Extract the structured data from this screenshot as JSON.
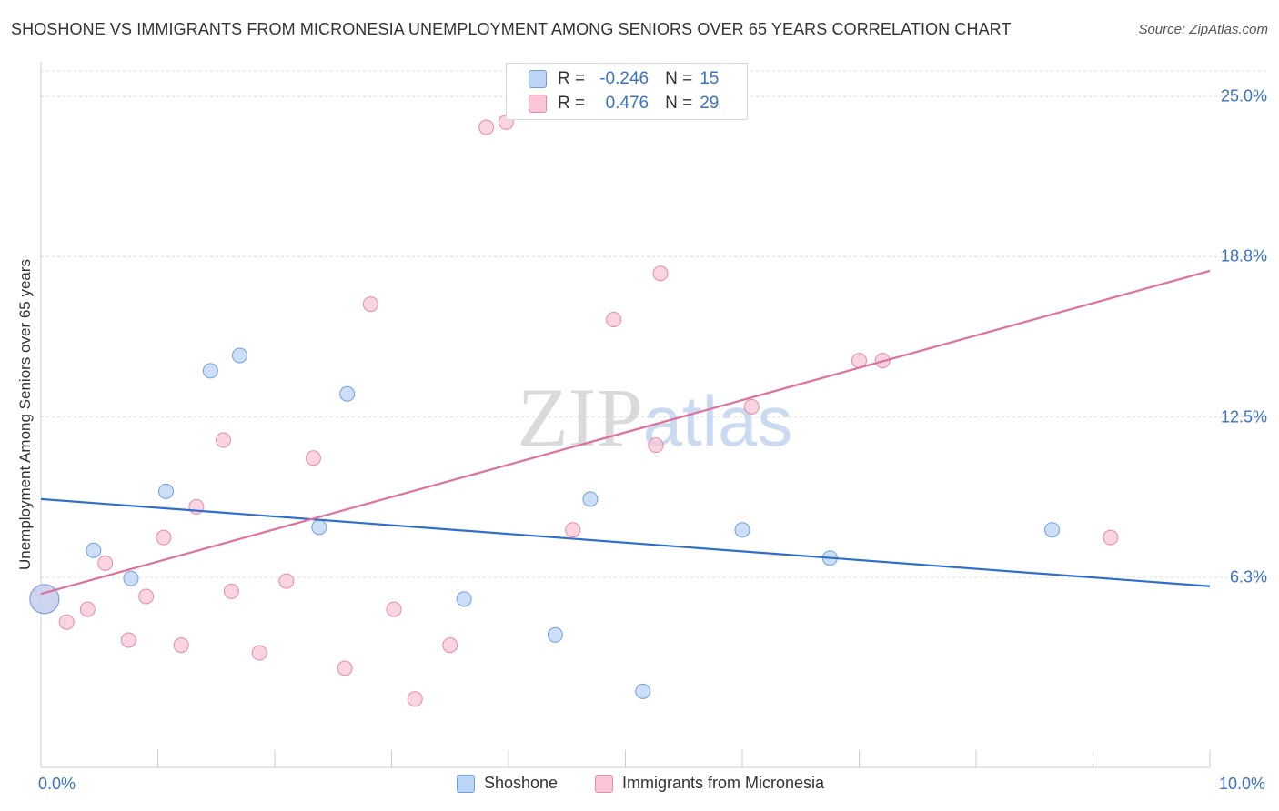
{
  "chart_data": {
    "type": "scatter",
    "title": "SHOSHONE VS IMMIGRANTS FROM MICRONESIA UNEMPLOYMENT AMONG SENIORS OVER 65 YEARS CORRELATION CHART",
    "source": "Source: ZipAtlas.com",
    "xlabel": "",
    "ylabel": "Unemployment Among Seniors over 65 years",
    "xlim": [
      0,
      10
    ],
    "ylim": [
      -0.6,
      26
    ],
    "y_ticks": [
      {
        "value": 6.25,
        "label": "6.3%"
      },
      {
        "value": 12.5,
        "label": "12.5%"
      },
      {
        "value": 18.75,
        "label": "18.8%"
      },
      {
        "value": 25.0,
        "label": "25.0%"
      }
    ],
    "x_tick_labels": {
      "min": "0.0%",
      "max": "10.0%"
    },
    "grid": true,
    "watermark": "ZIPatlas",
    "legend": {
      "rows": [
        {
          "r_label": "R =",
          "r_value": "-0.246",
          "n_label": "N =",
          "n_value": "15"
        },
        {
          "r_label": "R =",
          "r_value": "0.476",
          "n_label": "N =",
          "n_value": "29"
        }
      ]
    },
    "series": [
      {
        "name": "Shoshone",
        "fill": "#bcd4f5",
        "stroke": "#6f9edd",
        "line_color": "#2e6fcc",
        "trend": {
          "x": [
            0,
            10
          ],
          "y": [
            9.3,
            5.9
          ]
        },
        "points": [
          {
            "x": 0.03,
            "y": 5.4,
            "big": true
          },
          {
            "x": 0.45,
            "y": 7.3
          },
          {
            "x": 0.77,
            "y": 6.2
          },
          {
            "x": 1.07,
            "y": 9.6
          },
          {
            "x": 1.45,
            "y": 14.3
          },
          {
            "x": 1.7,
            "y": 14.9
          },
          {
            "x": 2.38,
            "y": 8.2
          },
          {
            "x": 2.62,
            "y": 13.4
          },
          {
            "x": 3.62,
            "y": 5.4
          },
          {
            "x": 4.4,
            "y": 4.0
          },
          {
            "x": 4.7,
            "y": 9.3
          },
          {
            "x": 5.15,
            "y": 1.8
          },
          {
            "x": 6.0,
            "y": 8.1
          },
          {
            "x": 6.75,
            "y": 7.0
          },
          {
            "x": 8.65,
            "y": 8.1
          }
        ]
      },
      {
        "name": "Immigrants from Micronesia",
        "fill": "#f8c6d6",
        "stroke": "#e68aa8",
        "line_color": "#e07099",
        "trend": {
          "x": [
            0,
            10
          ],
          "y": [
            5.6,
            18.2
          ]
        },
        "points": [
          {
            "x": 0.03,
            "y": 5.4,
            "big": true
          },
          {
            "x": 0.22,
            "y": 4.5
          },
          {
            "x": 0.4,
            "y": 5.0
          },
          {
            "x": 0.55,
            "y": 6.8
          },
          {
            "x": 0.75,
            "y": 3.8
          },
          {
            "x": 0.9,
            "y": 5.5
          },
          {
            "x": 1.05,
            "y": 7.8
          },
          {
            "x": 1.2,
            "y": 3.6
          },
          {
            "x": 1.33,
            "y": 9.0
          },
          {
            "x": 1.56,
            "y": 11.6
          },
          {
            "x": 1.63,
            "y": 5.7
          },
          {
            "x": 1.87,
            "y": 3.3
          },
          {
            "x": 2.1,
            "y": 6.1
          },
          {
            "x": 2.33,
            "y": 10.9
          },
          {
            "x": 2.6,
            "y": 2.7
          },
          {
            "x": 2.82,
            "y": 16.9
          },
          {
            "x": 3.02,
            "y": 5.0
          },
          {
            "x": 3.2,
            "y": 1.5
          },
          {
            "x": 3.5,
            "y": 3.6
          },
          {
            "x": 3.81,
            "y": 23.8
          },
          {
            "x": 3.98,
            "y": 24.0
          },
          {
            "x": 4.55,
            "y": 8.1
          },
          {
            "x": 4.9,
            "y": 16.3
          },
          {
            "x": 5.26,
            "y": 11.4
          },
          {
            "x": 5.3,
            "y": 18.1
          },
          {
            "x": 6.08,
            "y": 12.9
          },
          {
            "x": 7.0,
            "y": 14.7
          },
          {
            "x": 7.2,
            "y": 14.7
          },
          {
            "x": 9.15,
            "y": 7.8
          }
        ]
      }
    ]
  }
}
